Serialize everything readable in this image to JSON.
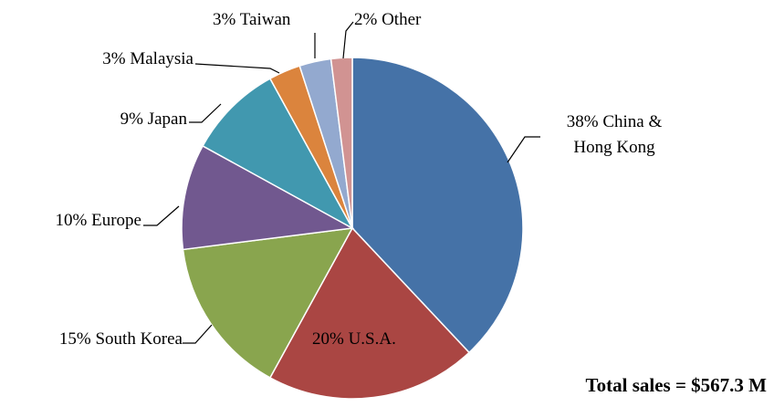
{
  "chart_data": {
    "type": "pie",
    "categories": [
      "China & Hong Kong",
      "U.S.A.",
      "South Korea",
      "Europe",
      "Japan",
      "Malaysia",
      "Taiwan",
      "Other"
    ],
    "values": [
      38,
      20,
      15,
      10,
      9,
      3,
      3,
      2
    ],
    "value_labels": [
      "38%",
      "20%",
      "15%",
      "10%",
      "9%",
      "3%",
      "3%",
      "2%"
    ],
    "colors": [
      "#4572a7",
      "#aa4643",
      "#89a54e",
      "#71588f",
      "#4198af",
      "#db843d",
      "#93a9cf",
      "#d19392"
    ],
    "annotation": "Total sales = $567.3 M"
  }
}
